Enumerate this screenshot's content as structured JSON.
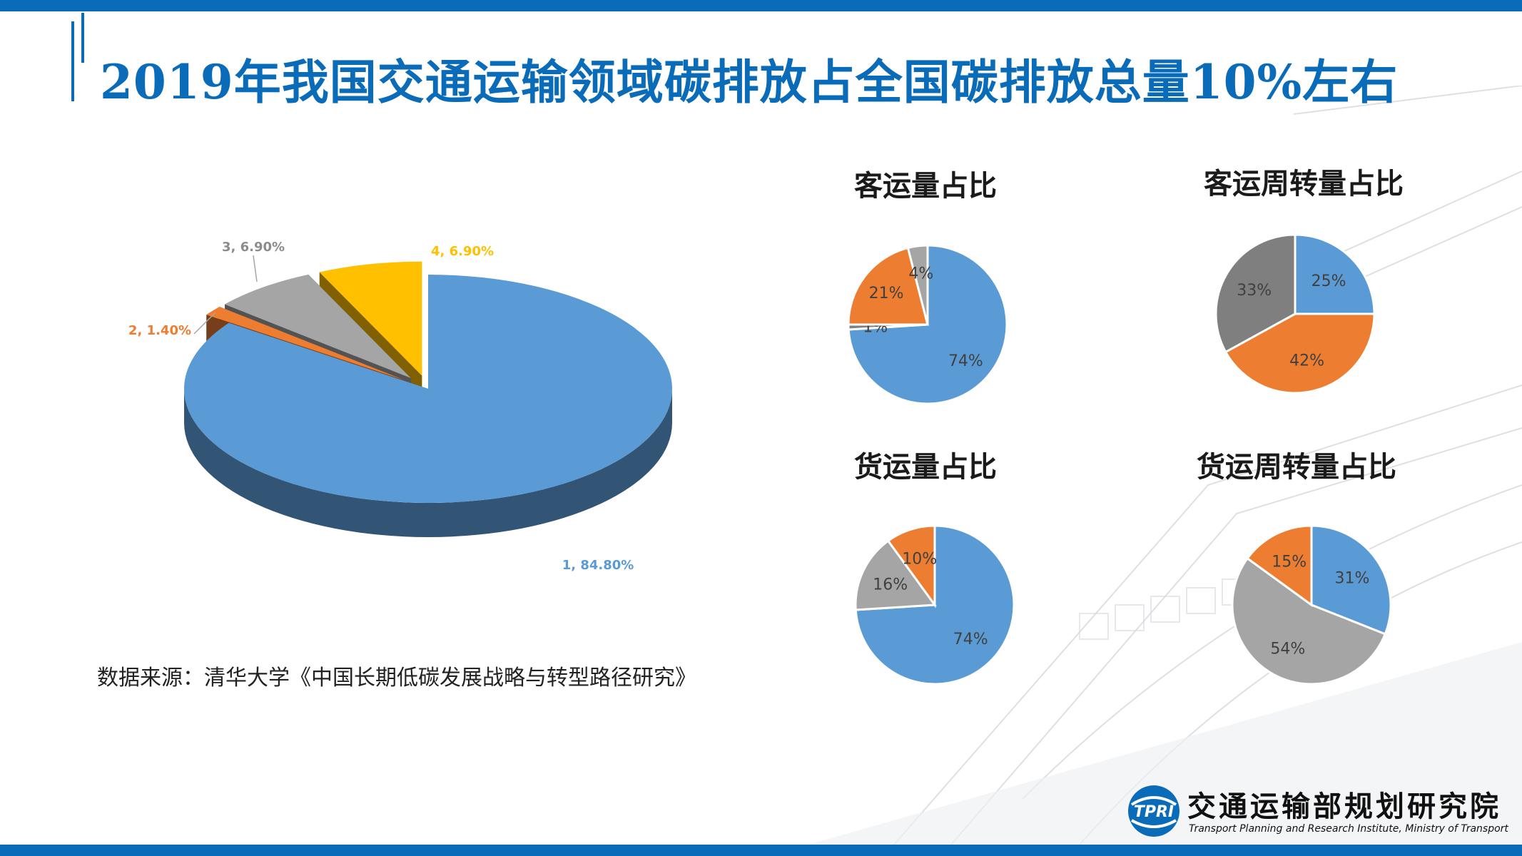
{
  "title": "2019年我国交通运输领域碳排放占全国碳排放总量10%左右",
  "source": "数据来源：清华大学《中国长期低碳发展战略与转型路径研究》",
  "logo": {
    "name_cn": "交通运输部规划研究院",
    "name_en": "Transport Planning and Research Institute, Ministry of Transport",
    "mark_text": "TPRI"
  },
  "colors": {
    "brand": "#0a6cb8",
    "blue": "#5b9bd5",
    "orange": "#ed7d31",
    "gray": "#a5a5a5",
    "yellow": "#ffc000",
    "darkgray": "#7f7f7f"
  },
  "chart_data": [
    {
      "type": "pie",
      "style": "3d-exploded",
      "title": "",
      "categories": [
        "1",
        "2",
        "3",
        "4"
      ],
      "values": [
        84.8,
        1.4,
        6.9,
        6.9
      ],
      "labels": [
        "1, 84.80%",
        "2, 1.40%",
        "3, 6.90%",
        "4, 6.90%"
      ],
      "colors": [
        "#5b9bd5",
        "#ed7d31",
        "#a5a5a5",
        "#ffc000"
      ]
    },
    {
      "type": "pie",
      "title": "客运量占比",
      "values": [
        74,
        1,
        21,
        4
      ],
      "labels": [
        "74%",
        "1%",
        "21%",
        "4%"
      ],
      "colors": [
        "#5b9bd5",
        "#7f7f7f",
        "#ed7d31",
        "#a5a5a5"
      ]
    },
    {
      "type": "pie",
      "title": "客运周转量占比",
      "values": [
        25,
        42,
        33
      ],
      "labels": [
        "25%",
        "42%",
        "33%"
      ],
      "colors": [
        "#5b9bd5",
        "#ed7d31",
        "#7f7f7f"
      ]
    },
    {
      "type": "pie",
      "title": "货运量占比",
      "values": [
        74,
        16,
        10
      ],
      "labels": [
        "74%",
        "16%",
        "10%"
      ],
      "colors": [
        "#5b9bd5",
        "#a5a5a5",
        "#ed7d31"
      ]
    },
    {
      "type": "pie",
      "title": "货运周转量占比",
      "values": [
        31,
        54,
        15
      ],
      "labels": [
        "31%",
        "54%",
        "15%"
      ],
      "colors": [
        "#5b9bd5",
        "#a5a5a5",
        "#ed7d31"
      ]
    }
  ]
}
